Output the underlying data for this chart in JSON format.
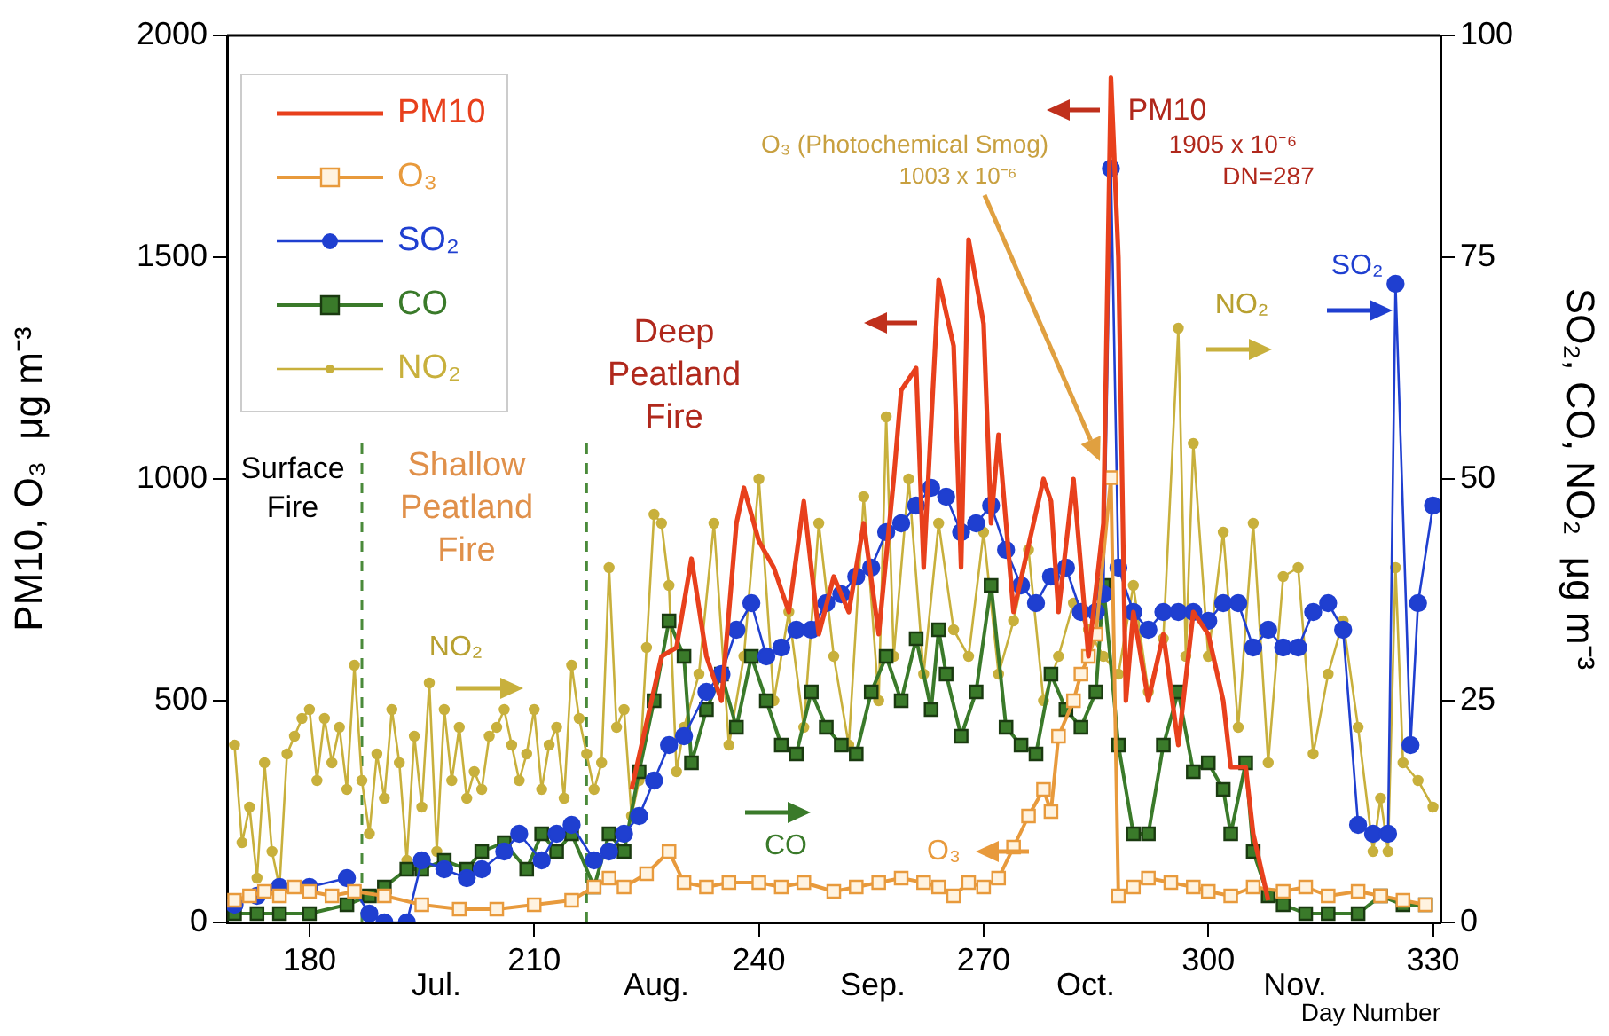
{
  "chart_data": {
    "type": "line",
    "xlabel": "Day Number",
    "ylabel": "PM10, O₃  μg m⁻³",
    "y2label": "SO₂, CO, NO₂  μg m⁻³",
    "xlim": [
      169,
      331
    ],
    "xticks": [
      180,
      210,
      240,
      270,
      300,
      330
    ],
    "ylim": [
      0,
      2000
    ],
    "yticks": [
      0,
      500,
      1000,
      1500,
      2000
    ],
    "y2lim": [
      0,
      100
    ],
    "y2ticks": [
      0,
      25,
      50,
      75,
      100
    ],
    "grid": false,
    "legend": "top left",
    "line_style": "solid",
    "series": [
      {
        "name": "PM10",
        "color": "#e8401c",
        "marker": "none",
        "x": [
          223,
          225,
          227,
          229,
          231,
          233,
          235,
          237,
          238,
          240,
          242,
          244,
          246,
          248,
          250,
          252,
          254,
          256,
          258,
          259,
          261,
          262,
          264,
          266,
          267,
          268,
          270,
          271,
          272,
          274,
          276,
          278,
          279,
          280,
          282,
          284,
          286,
          287,
          288,
          289,
          290,
          292,
          294,
          296,
          298,
          300,
          302,
          303,
          305,
          306,
          308
        ],
        "values": [
          300,
          450,
          600,
          620,
          820,
          600,
          500,
          900,
          980,
          860,
          800,
          700,
          950,
          650,
          780,
          700,
          900,
          650,
          1000,
          1200,
          1250,
          800,
          1450,
          1300,
          800,
          1540,
          1350,
          900,
          1100,
          700,
          850,
          1000,
          950,
          700,
          1000,
          600,
          900,
          1905,
          1500,
          500,
          700,
          500,
          650,
          400,
          700,
          650,
          500,
          350,
          350,
          200,
          50
        ]
      },
      {
        "name": "O₃",
        "color": "#e89a3c",
        "marker": "square",
        "x": [
          170,
          172,
          174,
          176,
          178,
          180,
          183,
          186,
          190,
          195,
          200,
          205,
          210,
          215,
          218,
          220,
          222,
          225,
          228,
          230,
          233,
          236,
          240,
          243,
          246,
          250,
          253,
          256,
          259,
          262,
          264,
          266,
          268,
          270,
          272,
          274,
          276,
          278,
          279,
          280,
          282,
          283,
          284,
          285,
          287,
          288,
          290,
          292,
          295,
          298,
          300,
          303,
          306,
          310,
          313,
          316,
          320,
          323,
          326,
          329
        ],
        "values": [
          50,
          60,
          70,
          60,
          80,
          70,
          60,
          70,
          60,
          40,
          30,
          30,
          40,
          50,
          80,
          100,
          80,
          110,
          160,
          90,
          80,
          90,
          90,
          80,
          90,
          70,
          80,
          90,
          100,
          90,
          80,
          60,
          90,
          80,
          100,
          170,
          240,
          300,
          250,
          420,
          500,
          560,
          600,
          650,
          1003,
          60,
          80,
          100,
          90,
          80,
          70,
          60,
          80,
          70,
          80,
          60,
          70,
          60,
          50,
          40
        ]
      },
      {
        "name": "SO₂",
        "color": "#1f3fd0",
        "marker": "circle",
        "axis": "y2",
        "x": [
          170,
          173,
          176,
          180,
          185,
          188,
          190,
          193,
          195,
          198,
          201,
          203,
          206,
          208,
          211,
          213,
          215,
          218,
          220,
          222,
          224,
          226,
          228,
          230,
          233,
          235,
          237,
          239,
          241,
          243,
          245,
          247,
          249,
          251,
          253,
          255,
          257,
          259,
          261,
          263,
          265,
          267,
          269,
          271,
          273,
          275,
          277,
          279,
          281,
          283,
          285,
          286,
          287,
          288,
          290,
          292,
          294,
          296,
          298,
          300,
          302,
          304,
          306,
          308,
          310,
          312,
          314,
          316,
          318,
          320,
          322,
          324,
          325,
          327,
          328,
          330
        ],
        "values": [
          2,
          3,
          4,
          4,
          5,
          1,
          0,
          0,
          7,
          6,
          5,
          6,
          8,
          10,
          7,
          10,
          11,
          7,
          8,
          10,
          12,
          16,
          20,
          21,
          26,
          28,
          33,
          36,
          30,
          31,
          33,
          33,
          36,
          37,
          39,
          40,
          44,
          45,
          47,
          49,
          48,
          44,
          45,
          47,
          42,
          38,
          36,
          39,
          40,
          35,
          35,
          37,
          85,
          40,
          35,
          33,
          35,
          35,
          35,
          34,
          36,
          36,
          31,
          33,
          31,
          31,
          35,
          36,
          33,
          11,
          10,
          10,
          72,
          20,
          36,
          47
        ]
      },
      {
        "name": "CO",
        "color": "#3a7a2a",
        "marker": "square",
        "axis": "y2",
        "x": [
          170,
          173,
          176,
          180,
          185,
          188,
          190,
          193,
          195,
          198,
          201,
          203,
          206,
          209,
          211,
          213,
          215,
          218,
          220,
          222,
          224,
          226,
          228,
          230,
          231,
          233,
          235,
          237,
          239,
          241,
          243,
          245,
          247,
          249,
          251,
          253,
          255,
          257,
          259,
          261,
          263,
          264,
          265,
          267,
          269,
          271,
          273,
          275,
          277,
          279,
          281,
          283,
          285,
          286,
          288,
          290,
          292,
          294,
          296,
          298,
          300,
          302,
          303,
          305,
          306,
          308,
          310,
          313,
          316,
          320,
          323,
          326,
          329
        ],
        "values": [
          1,
          1,
          1,
          1,
          2,
          3,
          4,
          6,
          6,
          7,
          6,
          8,
          9,
          6,
          10,
          8,
          10,
          4,
          10,
          8,
          17,
          25,
          34,
          30,
          18,
          24,
          28,
          22,
          30,
          25,
          20,
          19,
          26,
          22,
          20,
          19,
          26,
          30,
          25,
          32,
          24,
          33,
          28,
          21,
          26,
          38,
          22,
          20,
          19,
          28,
          24,
          22,
          26,
          38,
          20,
          10,
          10,
          20,
          26,
          17,
          18,
          15,
          10,
          18,
          8,
          3,
          2,
          1,
          1,
          1,
          3,
          2,
          2
        ]
      },
      {
        "name": "NO₂",
        "color": "#c8b03c",
        "marker": "circle",
        "axis": "y2",
        "x": [
          170,
          171,
          172,
          173,
          174,
          175,
          176,
          177,
          178,
          179,
          180,
          181,
          182,
          183,
          184,
          185,
          186,
          187,
          188,
          189,
          190,
          191,
          192,
          193,
          194,
          195,
          196,
          197,
          198,
          199,
          200,
          201,
          202,
          203,
          204,
          205,
          206,
          207,
          208,
          209,
          210,
          211,
          212,
          213,
          214,
          215,
          216,
          217,
          218,
          219,
          220,
          221,
          222,
          223,
          224,
          225,
          226,
          227,
          228,
          229,
          230,
          232,
          234,
          236,
          238,
          240,
          242,
          244,
          246,
          248,
          250,
          252,
          254,
          256,
          257,
          258,
          260,
          262,
          264,
          266,
          268,
          270,
          272,
          274,
          276,
          278,
          280,
          282,
          284,
          286,
          288,
          290,
          292,
          294,
          296,
          297,
          298,
          300,
          302,
          304,
          306,
          308,
          310,
          312,
          314,
          316,
          318,
          320,
          322,
          323,
          324,
          325,
          326,
          328,
          330
        ],
        "values": [
          20,
          9,
          13,
          5,
          18,
          8,
          4,
          19,
          21,
          23,
          24,
          16,
          23,
          18,
          22,
          15,
          29,
          16,
          10,
          19,
          14,
          24,
          18,
          7,
          21,
          13,
          27,
          8,
          24,
          16,
          22,
          14,
          17,
          15,
          21,
          22,
          24,
          20,
          16,
          19,
          24,
          15,
          20,
          22,
          14,
          29,
          23,
          19,
          15,
          18,
          40,
          22,
          24,
          12,
          16,
          31,
          46,
          45,
          38,
          17,
          22,
          28,
          45,
          20,
          30,
          50,
          25,
          35,
          22,
          45,
          30,
          20,
          48,
          25,
          57,
          30,
          50,
          28,
          45,
          33,
          30,
          44,
          28,
          34,
          42,
          25,
          30,
          36,
          33,
          30,
          28,
          38,
          26,
          32,
          67,
          30,
          54,
          30,
          44,
          22,
          45,
          18,
          39,
          40,
          19,
          28,
          34,
          22,
          8,
          14,
          8,
          40,
          18,
          16,
          13
        ]
      }
    ],
    "ref_lines": [
      {
        "axis": "x",
        "value": 187,
        "color": "#4a8a3a",
        "line_style": "dashed"
      },
      {
        "axis": "x",
        "value": 217,
        "color": "#4a8a3a",
        "line_style": "dashed"
      }
    ],
    "annotations": [
      "PM10",
      "1905 x 10⁻⁶",
      "DN=287",
      "O₃ (Photochemical Smog)",
      "1003 x 10⁻⁶",
      "SO₂",
      "NO₂",
      "NO₂",
      "CO",
      "O₃",
      "Surface\nFire",
      "Shallow\nPeatland\nFire",
      "Deep\nPeatland\nFire",
      "Jul.",
      "Aug.",
      "Sep.",
      "Oct.",
      "Nov."
    ]
  }
}
